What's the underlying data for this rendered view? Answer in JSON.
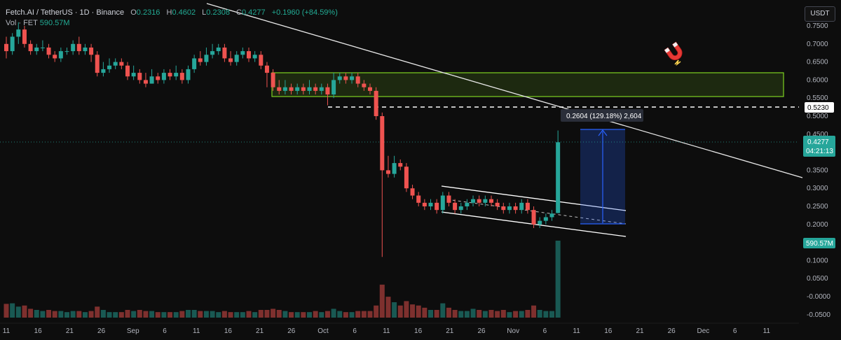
{
  "header": {
    "symbol": "Fetch.AI / TetherUS · 1D · Binance",
    "o_label": "O",
    "o_value": "0.2316",
    "h_label": "H",
    "h_value": "0.4602",
    "l_label": "L",
    "l_value": "0.2308",
    "c_label": "C",
    "c_value": "0.4277",
    "change": "+0.1960 (+84.59%)"
  },
  "volume_legend": {
    "label": "Vol · FET",
    "value": "590.57M"
  },
  "currency_button": "USDT",
  "price_axis_ticks": [
    "0.7500",
    "0.7000",
    "0.6500",
    "0.6000",
    "0.5500",
    "0.5000",
    "0.4500",
    "0.4000",
    "0.3500",
    "0.3000",
    "0.2500",
    "0.2000",
    "0.1500",
    "0.1000",
    "0.0500",
    "-0.0000",
    "-0.0500"
  ],
  "time_axis_ticks": [
    "11",
    "16",
    "21",
    "26",
    "Sep",
    "6",
    "11",
    "16",
    "21",
    "26",
    "Oct",
    "6",
    "11",
    "16",
    "21",
    "26",
    "Nov",
    "6",
    "11",
    "16",
    "21",
    "26",
    "Dec",
    "6",
    "11"
  ],
  "labels": {
    "level_tag": "0.5230",
    "last_price": "0.4277",
    "countdown": "04:21:13",
    "volume_tag": "590.57M",
    "measure": "0.2604 (129.18%) 2,604"
  },
  "icons": {
    "magnet": "magnet-icon"
  },
  "colors": {
    "up": "#26a69a",
    "down": "#ef5350",
    "zone": "#7ed321",
    "measure": "#2962ff",
    "bg": "#0d0d0d"
  },
  "chart_data": {
    "type": "candlestick",
    "series_unit": "USDT",
    "y_range": [
      -0.06,
      0.77
    ],
    "days": [
      {
        "o": 0.7,
        "c": 0.68,
        "h": 0.72,
        "l": 0.66,
        "v": 25
      },
      {
        "o": 0.68,
        "c": 0.72,
        "h": 0.73,
        "l": 0.67,
        "v": 26
      },
      {
        "o": 0.72,
        "c": 0.74,
        "h": 0.76,
        "l": 0.7,
        "v": 20
      },
      {
        "o": 0.74,
        "c": 0.7,
        "h": 0.75,
        "l": 0.69,
        "v": 22
      },
      {
        "o": 0.7,
        "c": 0.68,
        "h": 0.71,
        "l": 0.67,
        "v": 16
      },
      {
        "o": 0.68,
        "c": 0.69,
        "h": 0.7,
        "l": 0.67,
        "v": 14
      },
      {
        "o": 0.69,
        "c": 0.69,
        "h": 0.71,
        "l": 0.68,
        "v": 12
      },
      {
        "o": 0.69,
        "c": 0.67,
        "h": 0.7,
        "l": 0.66,
        "v": 14
      },
      {
        "o": 0.67,
        "c": 0.66,
        "h": 0.68,
        "l": 0.65,
        "v": 12
      },
      {
        "o": 0.66,
        "c": 0.68,
        "h": 0.69,
        "l": 0.65,
        "v": 12
      },
      {
        "o": 0.68,
        "c": 0.68,
        "h": 0.69,
        "l": 0.67,
        "v": 10
      },
      {
        "o": 0.68,
        "c": 0.7,
        "h": 0.71,
        "l": 0.67,
        "v": 12
      },
      {
        "o": 0.7,
        "c": 0.68,
        "h": 0.72,
        "l": 0.67,
        "v": 12
      },
      {
        "o": 0.68,
        "c": 0.69,
        "h": 0.7,
        "l": 0.67,
        "v": 10
      },
      {
        "o": 0.69,
        "c": 0.67,
        "h": 0.7,
        "l": 0.65,
        "v": 12
      },
      {
        "o": 0.67,
        "c": 0.62,
        "h": 0.68,
        "l": 0.61,
        "v": 20
      },
      {
        "o": 0.62,
        "c": 0.63,
        "h": 0.65,
        "l": 0.61,
        "v": 14
      },
      {
        "o": 0.63,
        "c": 0.64,
        "h": 0.66,
        "l": 0.62,
        "v": 10
      },
      {
        "o": 0.64,
        "c": 0.65,
        "h": 0.66,
        "l": 0.63,
        "v": 10
      },
      {
        "o": 0.65,
        "c": 0.64,
        "h": 0.66,
        "l": 0.63,
        "v": 10
      },
      {
        "o": 0.64,
        "c": 0.61,
        "h": 0.65,
        "l": 0.6,
        "v": 14
      },
      {
        "o": 0.61,
        "c": 0.62,
        "h": 0.64,
        "l": 0.6,
        "v": 12
      },
      {
        "o": 0.62,
        "c": 0.6,
        "h": 0.63,
        "l": 0.59,
        "v": 14
      },
      {
        "o": 0.6,
        "c": 0.59,
        "h": 0.62,
        "l": 0.58,
        "v": 12
      },
      {
        "o": 0.59,
        "c": 0.61,
        "h": 0.63,
        "l": 0.59,
        "v": 12
      },
      {
        "o": 0.61,
        "c": 0.6,
        "h": 0.62,
        "l": 0.59,
        "v": 10
      },
      {
        "o": 0.6,
        "c": 0.62,
        "h": 0.63,
        "l": 0.59,
        "v": 10
      },
      {
        "o": 0.62,
        "c": 0.61,
        "h": 0.63,
        "l": 0.6,
        "v": 10
      },
      {
        "o": 0.61,
        "c": 0.62,
        "h": 0.64,
        "l": 0.6,
        "v": 10
      },
      {
        "o": 0.62,
        "c": 0.6,
        "h": 0.63,
        "l": 0.59,
        "v": 12
      },
      {
        "o": 0.6,
        "c": 0.63,
        "h": 0.64,
        "l": 0.59,
        "v": 14
      },
      {
        "o": 0.63,
        "c": 0.66,
        "h": 0.67,
        "l": 0.62,
        "v": 14
      },
      {
        "o": 0.66,
        "c": 0.65,
        "h": 0.68,
        "l": 0.64,
        "v": 12
      },
      {
        "o": 0.65,
        "c": 0.67,
        "h": 0.69,
        "l": 0.64,
        "v": 12
      },
      {
        "o": 0.67,
        "c": 0.68,
        "h": 0.7,
        "l": 0.66,
        "v": 12
      },
      {
        "o": 0.68,
        "c": 0.69,
        "h": 0.7,
        "l": 0.67,
        "v": 10
      },
      {
        "o": 0.69,
        "c": 0.66,
        "h": 0.7,
        "l": 0.65,
        "v": 12
      },
      {
        "o": 0.66,
        "c": 0.65,
        "h": 0.68,
        "l": 0.64,
        "v": 10
      },
      {
        "o": 0.65,
        "c": 0.67,
        "h": 0.68,
        "l": 0.64,
        "v": 10
      },
      {
        "o": 0.67,
        "c": 0.68,
        "h": 0.69,
        "l": 0.66,
        "v": 10
      },
      {
        "o": 0.68,
        "c": 0.66,
        "h": 0.69,
        "l": 0.65,
        "v": 12
      },
      {
        "o": 0.66,
        "c": 0.67,
        "h": 0.68,
        "l": 0.65,
        "v": 10
      },
      {
        "o": 0.67,
        "c": 0.64,
        "h": 0.68,
        "l": 0.63,
        "v": 14
      },
      {
        "o": 0.64,
        "c": 0.62,
        "h": 0.65,
        "l": 0.58,
        "v": 14
      },
      {
        "o": 0.62,
        "c": 0.58,
        "h": 0.63,
        "l": 0.57,
        "v": 16
      },
      {
        "o": 0.58,
        "c": 0.57,
        "h": 0.6,
        "l": 0.56,
        "v": 14
      },
      {
        "o": 0.57,
        "c": 0.58,
        "h": 0.6,
        "l": 0.56,
        "v": 12
      },
      {
        "o": 0.58,
        "c": 0.57,
        "h": 0.59,
        "l": 0.56,
        "v": 10
      },
      {
        "o": 0.57,
        "c": 0.58,
        "h": 0.59,
        "l": 0.56,
        "v": 10
      },
      {
        "o": 0.58,
        "c": 0.57,
        "h": 0.59,
        "l": 0.56,
        "v": 10
      },
      {
        "o": 0.57,
        "c": 0.58,
        "h": 0.6,
        "l": 0.56,
        "v": 10
      },
      {
        "o": 0.58,
        "c": 0.57,
        "h": 0.59,
        "l": 0.56,
        "v": 12
      },
      {
        "o": 0.57,
        "c": 0.58,
        "h": 0.59,
        "l": 0.56,
        "v": 10
      },
      {
        "o": 0.58,
        "c": 0.56,
        "h": 0.59,
        "l": 0.53,
        "v": 12
      },
      {
        "o": 0.56,
        "c": 0.6,
        "h": 0.62,
        "l": 0.55,
        "v": 16
      },
      {
        "o": 0.6,
        "c": 0.61,
        "h": 0.62,
        "l": 0.59,
        "v": 12
      },
      {
        "o": 0.61,
        "c": 0.6,
        "h": 0.62,
        "l": 0.59,
        "v": 10
      },
      {
        "o": 0.6,
        "c": 0.61,
        "h": 0.62,
        "l": 0.59,
        "v": 10
      },
      {
        "o": 0.61,
        "c": 0.59,
        "h": 0.62,
        "l": 0.58,
        "v": 12
      },
      {
        "o": 0.59,
        "c": 0.58,
        "h": 0.6,
        "l": 0.57,
        "v": 12
      },
      {
        "o": 0.58,
        "c": 0.57,
        "h": 0.59,
        "l": 0.56,
        "v": 12
      },
      {
        "o": 0.57,
        "c": 0.5,
        "h": 0.58,
        "l": 0.49,
        "v": 22
      },
      {
        "o": 0.5,
        "c": 0.35,
        "h": 0.51,
        "l": 0.11,
        "v": 60
      },
      {
        "o": 0.35,
        "c": 0.34,
        "h": 0.39,
        "l": 0.33,
        "v": 38
      },
      {
        "o": 0.34,
        "c": 0.37,
        "h": 0.39,
        "l": 0.33,
        "v": 28
      },
      {
        "o": 0.37,
        "c": 0.36,
        "h": 0.38,
        "l": 0.35,
        "v": 22
      },
      {
        "o": 0.36,
        "c": 0.3,
        "h": 0.37,
        "l": 0.29,
        "v": 30
      },
      {
        "o": 0.3,
        "c": 0.28,
        "h": 0.31,
        "l": 0.27,
        "v": 24
      },
      {
        "o": 0.28,
        "c": 0.26,
        "h": 0.29,
        "l": 0.25,
        "v": 22
      },
      {
        "o": 0.26,
        "c": 0.25,
        "h": 0.27,
        "l": 0.24,
        "v": 18
      },
      {
        "o": 0.25,
        "c": 0.26,
        "h": 0.27,
        "l": 0.24,
        "v": 14
      },
      {
        "o": 0.26,
        "c": 0.24,
        "h": 0.27,
        "l": 0.23,
        "v": 14
      },
      {
        "o": 0.24,
        "c": 0.28,
        "h": 0.29,
        "l": 0.23,
        "v": 26
      },
      {
        "o": 0.28,
        "c": 0.26,
        "h": 0.29,
        "l": 0.25,
        "v": 18
      },
      {
        "o": 0.26,
        "c": 0.24,
        "h": 0.27,
        "l": 0.23,
        "v": 14
      },
      {
        "o": 0.24,
        "c": 0.25,
        "h": 0.26,
        "l": 0.23,
        "v": 12
      },
      {
        "o": 0.25,
        "c": 0.26,
        "h": 0.27,
        "l": 0.24,
        "v": 12
      },
      {
        "o": 0.26,
        "c": 0.27,
        "h": 0.28,
        "l": 0.25,
        "v": 16
      },
      {
        "o": 0.27,
        "c": 0.26,
        "h": 0.28,
        "l": 0.25,
        "v": 14
      },
      {
        "o": 0.26,
        "c": 0.27,
        "h": 0.28,
        "l": 0.25,
        "v": 12
      },
      {
        "o": 0.27,
        "c": 0.26,
        "h": 0.28,
        "l": 0.25,
        "v": 14
      },
      {
        "o": 0.26,
        "c": 0.25,
        "h": 0.27,
        "l": 0.24,
        "v": 12
      },
      {
        "o": 0.25,
        "c": 0.24,
        "h": 0.26,
        "l": 0.23,
        "v": 14
      },
      {
        "o": 0.24,
        "c": 0.25,
        "h": 0.26,
        "l": 0.23,
        "v": 10
      },
      {
        "o": 0.25,
        "c": 0.24,
        "h": 0.26,
        "l": 0.23,
        "v": 12
      },
      {
        "o": 0.24,
        "c": 0.26,
        "h": 0.27,
        "l": 0.23,
        "v": 12
      },
      {
        "o": 0.26,
        "c": 0.24,
        "h": 0.27,
        "l": 0.23,
        "v": 14
      },
      {
        "o": 0.24,
        "c": 0.2,
        "h": 0.25,
        "l": 0.19,
        "v": 22
      },
      {
        "o": 0.2,
        "c": 0.21,
        "h": 0.22,
        "l": 0.19,
        "v": 14
      },
      {
        "o": 0.21,
        "c": 0.22,
        "h": 0.23,
        "l": 0.2,
        "v": 12
      },
      {
        "o": 0.22,
        "c": 0.23,
        "h": 0.24,
        "l": 0.21,
        "v": 12
      },
      {
        "o": 0.2316,
        "c": 0.4277,
        "h": 0.4602,
        "l": 0.2308,
        "v": 140
      }
    ]
  }
}
